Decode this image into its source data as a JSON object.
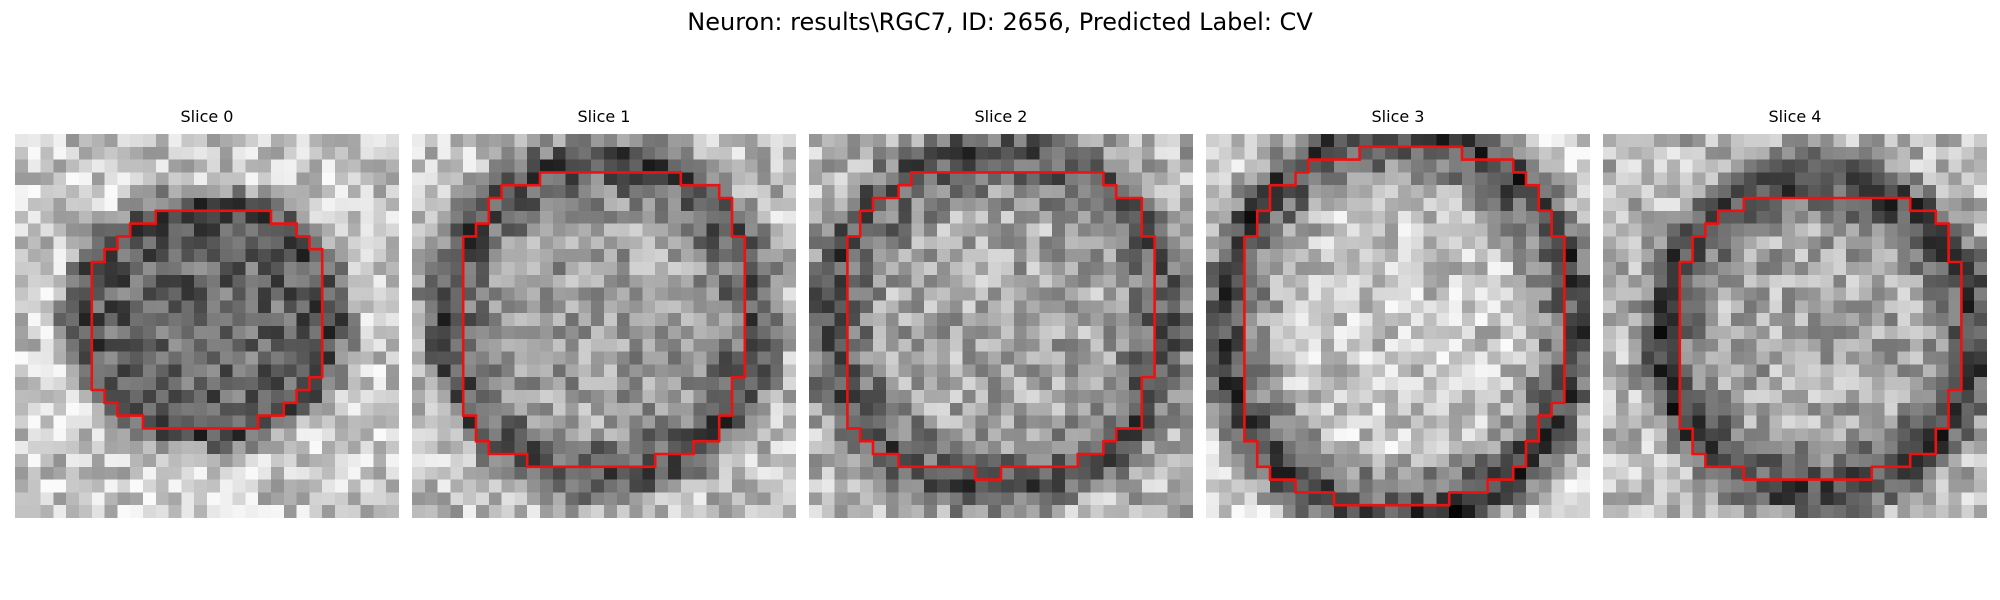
{
  "figure": {
    "title": "Neuron: results\\RGC7, ID: 2656, Predicted Label: CV"
  },
  "panels": [
    {
      "label": "Slice 0",
      "brightness_center": 0.4,
      "brightness_ring": 0.3,
      "brightness_outside": 0.78
    },
    {
      "label": "Slice 1",
      "brightness_center": 0.62,
      "brightness_ring": 0.28,
      "brightness_outside": 0.74
    },
    {
      "label": "Slice 2",
      "brightness_center": 0.66,
      "brightness_ring": 0.3,
      "brightness_outside": 0.7
    },
    {
      "label": "Slice 3",
      "brightness_center": 0.78,
      "brightness_ring": 0.22,
      "brightness_outside": 0.84
    },
    {
      "label": "Slice 4",
      "brightness_center": 0.66,
      "brightness_ring": 0.22,
      "brightness_outside": 0.72
    }
  ],
  "colors": {
    "outline": "#ee1111",
    "background": "#ffffff",
    "text": "#000000"
  }
}
